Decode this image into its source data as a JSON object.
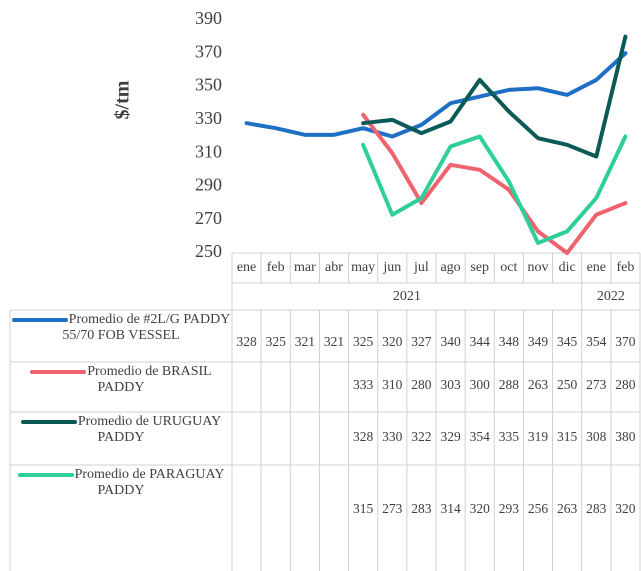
{
  "chart_data": {
    "type": "line",
    "y_axis_label": "$/tm",
    "categories": [
      "ene",
      "feb",
      "mar",
      "abr",
      "may",
      "jun",
      "jul",
      "ago",
      "sep",
      "oct",
      "nov",
      "dic",
      "ene",
      "feb"
    ],
    "years": [
      "2021",
      "2022"
    ],
    "ylim": [
      250,
      390
    ],
    "yticks": [
      250,
      270,
      290,
      310,
      330,
      350,
      370,
      390
    ],
    "series": [
      {
        "name": "Promedio de #2L/G PADDY 55/70 FOB VESSEL",
        "color": "#1f6fc6",
        "values": [
          328,
          325,
          321,
          321,
          325,
          320,
          327,
          340,
          344,
          348,
          349,
          345,
          354,
          370
        ]
      },
      {
        "name": "Promedio de BRASIL PADDY",
        "color": "#f0636e",
        "values": [
          null,
          null,
          null,
          null,
          333,
          310,
          280,
          303,
          300,
          288,
          263,
          250,
          273,
          280
        ]
      },
      {
        "name": "Promedio de URUGUAY PADDY",
        "color": "#0b5a55",
        "values": [
          null,
          null,
          null,
          null,
          328,
          330,
          322,
          329,
          354,
          335,
          319,
          315,
          308,
          380
        ]
      },
      {
        "name": "Promedio de PARAGUAY PADDY",
        "color": "#2fcf9a",
        "values": [
          null,
          null,
          null,
          null,
          315,
          273,
          283,
          314,
          320,
          293,
          256,
          263,
          283,
          320
        ]
      }
    ]
  }
}
